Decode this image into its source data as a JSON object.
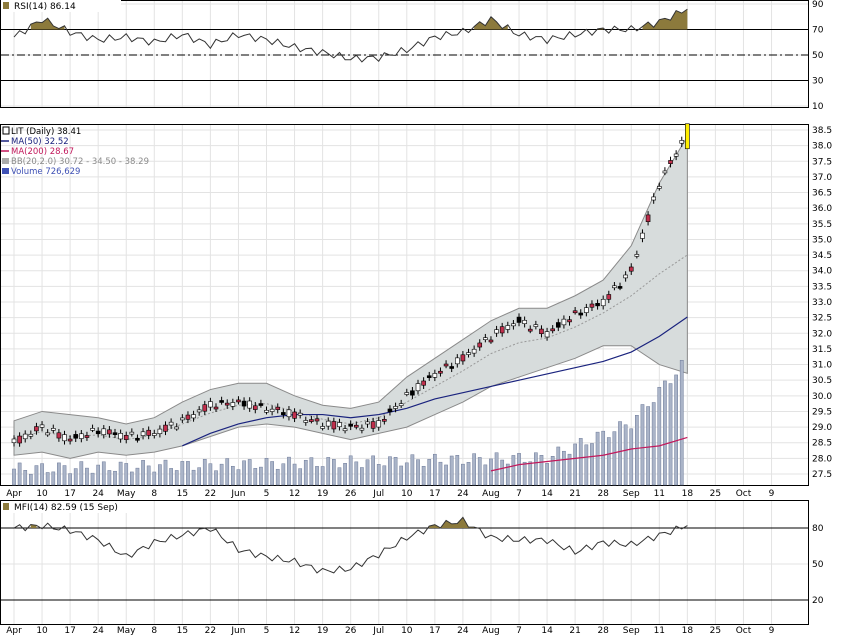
{
  "rsi_panel": {
    "label": "RSI(14) 86.14",
    "axis_ticks": [
      "90",
      "70",
      "50",
      "30",
      "10"
    ]
  },
  "price_panel": {
    "legend": [
      {
        "text": "LIT (Daily) 38.41",
        "color": "#000000",
        "icon": "candle-icon"
      },
      {
        "text": "MA(50) 32.52",
        "color": "#1a237e",
        "icon": "line-icon"
      },
      {
        "text": "MA(200) 28.67",
        "color": "#c2185b",
        "icon": "line-icon"
      },
      {
        "text": "BB(20,2.0) 30.72 - 34.50 - 38.29",
        "color": "#8a8a8a",
        "icon": "band-icon"
      },
      {
        "text": "Volume 726,629",
        "color": "#3f51b5",
        "icon": "volume-icon"
      }
    ],
    "axis_ticks": [
      "38.5",
      "38.0",
      "37.5",
      "37.0",
      "36.5",
      "36.0",
      "35.5",
      "35.0",
      "34.5",
      "34.0",
      "33.5",
      "33.0",
      "32.5",
      "32.0",
      "31.5",
      "31.0",
      "30.5",
      "30.0",
      "29.5",
      "29.0",
      "28.5",
      "28.0",
      "27.5"
    ],
    "x_labels": [
      "Apr",
      "10",
      "17",
      "24",
      "May",
      "8",
      "15",
      "22",
      "Jun",
      "5",
      "12",
      "19",
      "26",
      "Jul",
      "10",
      "17",
      "24",
      "Aug",
      "7",
      "14",
      "21",
      "28",
      "Sep",
      "11",
      "18",
      "25",
      "Oct",
      "9"
    ]
  },
  "mfi_panel": {
    "label": "MFI(14) 82.59 (15 Sep)",
    "axis_ticks": [
      "80",
      "50",
      "20"
    ]
  },
  "colors": {
    "up_candle": "#ffffff",
    "down_candle_red": "#c0304d",
    "down_candle_black": "#000000",
    "band_fill": "#d7dcdc",
    "ma50": "#1a237e",
    "ma200": "#c2185b",
    "volume": "#aab4c8",
    "overbought_fill": "#8c7a3c"
  },
  "chart_data": [
    {
      "type": "line",
      "title": "RSI(14) 86.14",
      "x": [
        "Apr",
        "10",
        "17",
        "24",
        "May",
        "8",
        "15",
        "22",
        "Jun",
        "5",
        "12",
        "19",
        "26",
        "Jul",
        "10",
        "17",
        "24",
        "Aug",
        "7",
        "14",
        "21",
        "28",
        "Sep",
        "11",
        "18"
      ],
      "series": [
        {
          "values": [
            64,
            78,
            68,
            62,
            64,
            60,
            66,
            58,
            66,
            62,
            56,
            52,
            47,
            48,
            54,
            64,
            68,
            78,
            66,
            62,
            66,
            70,
            70,
            76,
            86
          ]
        }
      ],
      "levels": [
        70,
        50,
        30
      ],
      "ylim": [
        0,
        100
      ]
    },
    {
      "type": "line",
      "title": "LIT (Daily) 38.41",
      "x": [
        "Apr",
        "10",
        "17",
        "24",
        "May",
        "8",
        "15",
        "22",
        "Jun",
        "5",
        "12",
        "19",
        "26",
        "Jul",
        "10",
        "17",
        "24",
        "Aug",
        "7",
        "14",
        "21",
        "28",
        "Sep",
        "11",
        "18"
      ],
      "series": [
        {
          "name": "LIT (Daily) 38.41",
          "values": [
            28.5,
            29.0,
            28.6,
            28.9,
            28.7,
            28.8,
            29.2,
            29.7,
            29.8,
            29.6,
            29.4,
            29.1,
            29.0,
            29.1,
            30.0,
            30.7,
            31.2,
            31.9,
            32.4,
            32.0,
            32.6,
            33.0,
            34.0,
            36.8,
            38.41
          ]
        },
        {
          "name": "MA(50) 32.52",
          "values": [
            null,
            null,
            null,
            null,
            null,
            null,
            28.4,
            28.8,
            29.1,
            29.3,
            29.4,
            29.4,
            29.3,
            29.4,
            29.6,
            29.9,
            30.1,
            30.3,
            30.5,
            30.7,
            30.9,
            31.1,
            31.4,
            31.9,
            32.52
          ]
        },
        {
          "name": "MA(200) 28.67",
          "values": [
            null,
            null,
            null,
            null,
            null,
            null,
            null,
            null,
            null,
            null,
            null,
            null,
            null,
            null,
            null,
            null,
            null,
            27.6,
            27.8,
            27.9,
            28.0,
            28.1,
            28.3,
            28.4,
            28.67
          ]
        },
        {
          "name": "BB upper",
          "values": [
            29.2,
            29.5,
            29.4,
            29.3,
            29.1,
            29.3,
            29.8,
            30.2,
            30.4,
            30.4,
            30.0,
            29.7,
            29.6,
            29.8,
            30.6,
            31.2,
            31.8,
            32.4,
            32.8,
            32.8,
            33.2,
            33.7,
            34.8,
            36.8,
            38.29
          ]
        },
        {
          "name": "BB lower",
          "values": [
            28.1,
            28.2,
            28.0,
            28.2,
            28.1,
            28.2,
            28.4,
            28.7,
            29.0,
            29.1,
            29.0,
            28.8,
            28.6,
            28.8,
            29.0,
            29.4,
            29.8,
            30.3,
            30.6,
            30.9,
            31.2,
            31.6,
            31.6,
            31.0,
            30.72
          ]
        }
      ],
      "ylim": [
        27.2,
        38.8
      ]
    },
    {
      "type": "line",
      "title": "MFI(14) 82.59 (15 Sep)",
      "x": [
        "Apr",
        "10",
        "17",
        "24",
        "May",
        "8",
        "15",
        "22",
        "Jun",
        "5",
        "12",
        "19",
        "26",
        "Jul",
        "10",
        "17",
        "24",
        "Aug",
        "7",
        "14",
        "21",
        "28",
        "Sep",
        "11",
        "18"
      ],
      "series": [
        {
          "values": [
            80,
            82,
            78,
            70,
            56,
            68,
            74,
            80,
            62,
            56,
            52,
            44,
            46,
            58,
            72,
            82,
            86,
            72,
            70,
            70,
            60,
            68,
            66,
            74,
            82
          ]
        }
      ],
      "levels": [
        80,
        50,
        20
      ],
      "ylim": [
        0,
        100
      ]
    }
  ]
}
